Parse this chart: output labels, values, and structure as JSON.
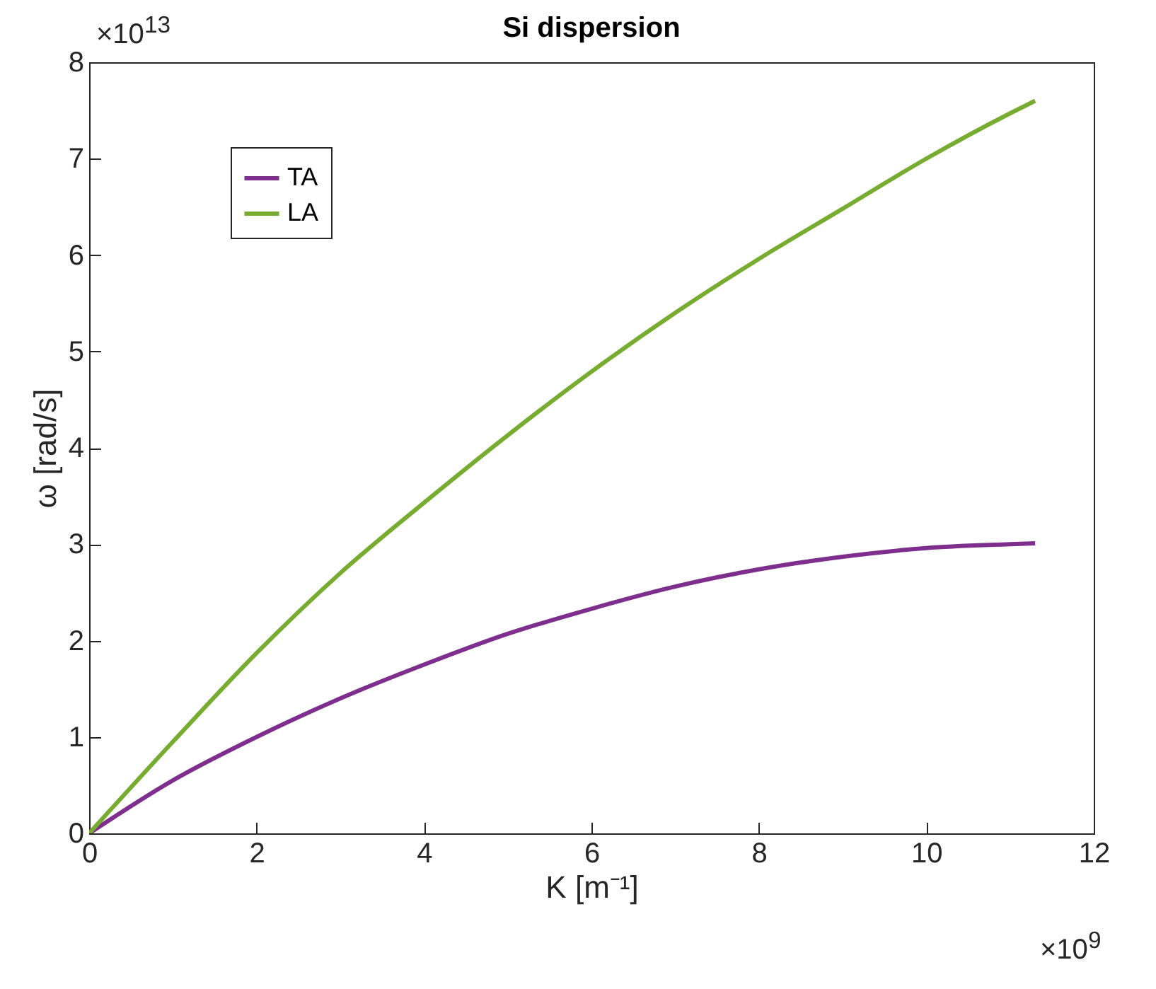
{
  "chart_data": {
    "type": "line",
    "title": "Si dispersion",
    "xlabel": "K [m⁻¹]",
    "ylabel": "ω [rad/s]",
    "annotations": [
      "×10$^{13}$",
      "×10$^{9}$"
    ],
    "x": [
      0,
      1,
      2,
      3,
      4,
      5,
      6,
      7,
      8,
      9,
      10,
      11,
      11.3
    ],
    "series": [
      {
        "name": "TA",
        "color": "#7e2f8e",
        "values": [
          0,
          0.55,
          1.0,
          1.4,
          1.75,
          2.07,
          2.33,
          2.56,
          2.74,
          2.87,
          2.96,
          3.0,
          3.01
        ]
      },
      {
        "name": "LA",
        "color": "#77ac30",
        "values": [
          0,
          0.95,
          1.87,
          2.7,
          3.43,
          4.13,
          4.79,
          5.4,
          5.96,
          6.48,
          7.0,
          7.47,
          7.6
        ]
      }
    ],
    "xlim": [
      0,
      12
    ],
    "xticks": [
      0,
      2,
      4,
      6,
      8,
      10,
      12
    ],
    "ylim": [
      0,
      8
    ],
    "yticks": [
      0,
      1,
      2,
      3,
      4,
      5,
      6,
      7,
      8
    ],
    "grid": false,
    "legend": "top left",
    "marker": "none",
    "line_style": "solid"
  }
}
